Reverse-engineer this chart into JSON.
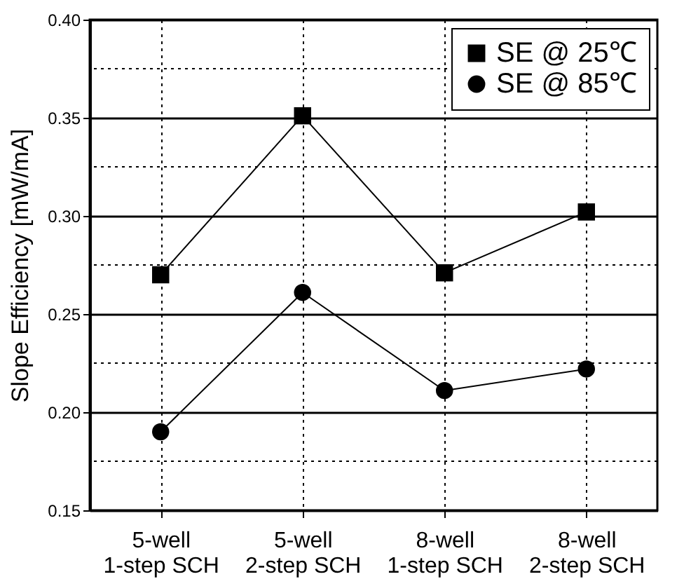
{
  "chart_data": {
    "type": "line",
    "ylabel": "Slope Efficiency [mW/mA]",
    "categories": [
      "5-well\n1-step SCH",
      "5-well\n2-step SCH",
      "8-well\n1-step SCH",
      "8-well\n2-step SCH"
    ],
    "series": [
      {
        "name": "SE @ 25℃",
        "color": "#000000",
        "marker": "square",
        "values": [
          0.27,
          0.351,
          0.271,
          0.302
        ]
      },
      {
        "name": "SE @ 85℃",
        "color": "#000000",
        "marker": "circle",
        "values": [
          0.19,
          0.261,
          0.211,
          0.222
        ]
      }
    ],
    "ylim": [
      0.15,
      0.4
    ],
    "yticks": [
      0.15,
      {
        "value": 0.175,
        "label": null
      },
      {
        "value": 0.2,
        "label": "0.20"
      },
      {
        "value": 0.225,
        "label": null
      },
      0.25,
      {
        "value": 0.275,
        "label": null
      },
      {
        "value": 0.3,
        "label": "0.30"
      },
      {
        "value": 0.325,
        "label": null
      },
      0.35,
      {
        "value": 0.375,
        "label": null
      },
      {
        "value": 0.4,
        "label": "0.40"
      }
    ],
    "grid": true,
    "legend": "top right",
    "line_style": "solid"
  }
}
